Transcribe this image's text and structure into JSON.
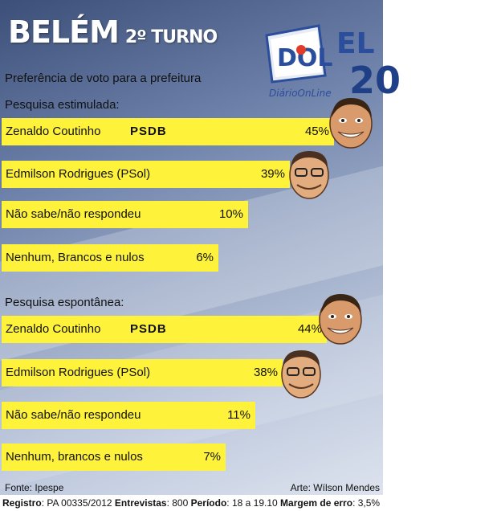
{
  "header": {
    "city": "BELÉM",
    "turn": "2º TURNO",
    "subtitle": "Preferência de voto para a prefeitura",
    "logo_text": "DOL",
    "logo_caption": "DiárioOnLine",
    "logo_partial_a": "EL",
    "logo_partial_b": "20"
  },
  "chart_data": [
    {
      "type": "bar",
      "title": "Pesquisa estimulada:",
      "unit": "%",
      "categories": [
        "Zenaldo Coutinho",
        "Edmilson Rodrigues (PSol)",
        "Não sabe/não respondeu",
        "Nenhum, Brancos e nulos"
      ],
      "parties": [
        "PSDB",
        "",
        "",
        ""
      ],
      "values": [
        45,
        39,
        10,
        6
      ],
      "labels": [
        "45%",
        "39%",
        "10%",
        "6%"
      ],
      "xlim": [
        0,
        45
      ]
    },
    {
      "type": "bar",
      "title": "Pesquisa espontânea:",
      "unit": "%",
      "categories": [
        "Zenaldo Coutinho",
        "Edmilson Rodrigues (PSol)",
        "Não sabe/não respondeu",
        "Nenhum, brancos e nulos"
      ],
      "parties": [
        "PSDB",
        "",
        "",
        ""
      ],
      "values": [
        44,
        38,
        11,
        7
      ],
      "labels": [
        "44%",
        "38%",
        "11%",
        "7%"
      ],
      "xlim": [
        0,
        45
      ]
    }
  ],
  "colors": {
    "bar": "#fff23a",
    "background_top": "#3b4f78",
    "background_bottom": "#dde3ee",
    "text": "#111111"
  },
  "icons": [
    "caricature-zenaldo-icon",
    "caricature-edmilson-icon"
  ],
  "footer": {
    "source": "Fonte: Ipespe",
    "art": "Arte: Wílson Mendes",
    "registro_label": "Registro",
    "registro_value": ": PA 00335/2012 ",
    "entrevistas_label": "Entrevistas",
    "entrevistas_value": ": 800 ",
    "periodo_label": "Período",
    "periodo_value": ": 18 a 19.10 ",
    "margem_label": "Margem de erro",
    "margem_value": ": 3,5%"
  }
}
